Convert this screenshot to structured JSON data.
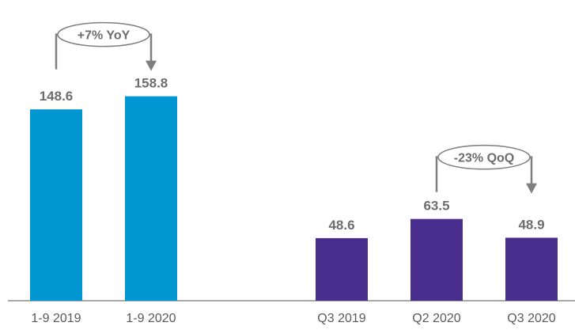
{
  "chart_data": {
    "type": "bar",
    "categories": [
      "1-9 2019",
      "1-9 2020",
      "Q3 2019",
      "Q2 2020",
      "Q3 2020"
    ],
    "values": [
      148.6,
      158.8,
      48.6,
      63.5,
      48.9
    ],
    "value_labels": [
      "148.6",
      "158.8",
      "48.6",
      "63.5",
      "48.9"
    ],
    "bar_colors": [
      "#0096d2",
      "#0096d2",
      "#482d8c",
      "#482d8c",
      "#482d8c"
    ],
    "ylim": [
      0,
      185
    ],
    "grid": false,
    "annotations": [
      {
        "text": "+7% YoY",
        "from_category": "1-9 2019",
        "to_category": "1-9 2020"
      },
      {
        "text": "-23% QoQ",
        "from_category": "Q2 2020",
        "to_category": "Q3 2020"
      }
    ]
  },
  "colors": {
    "annotation": "#7f7f7f",
    "axis": "#8c8c8c",
    "label": "#6d6d6d"
  }
}
